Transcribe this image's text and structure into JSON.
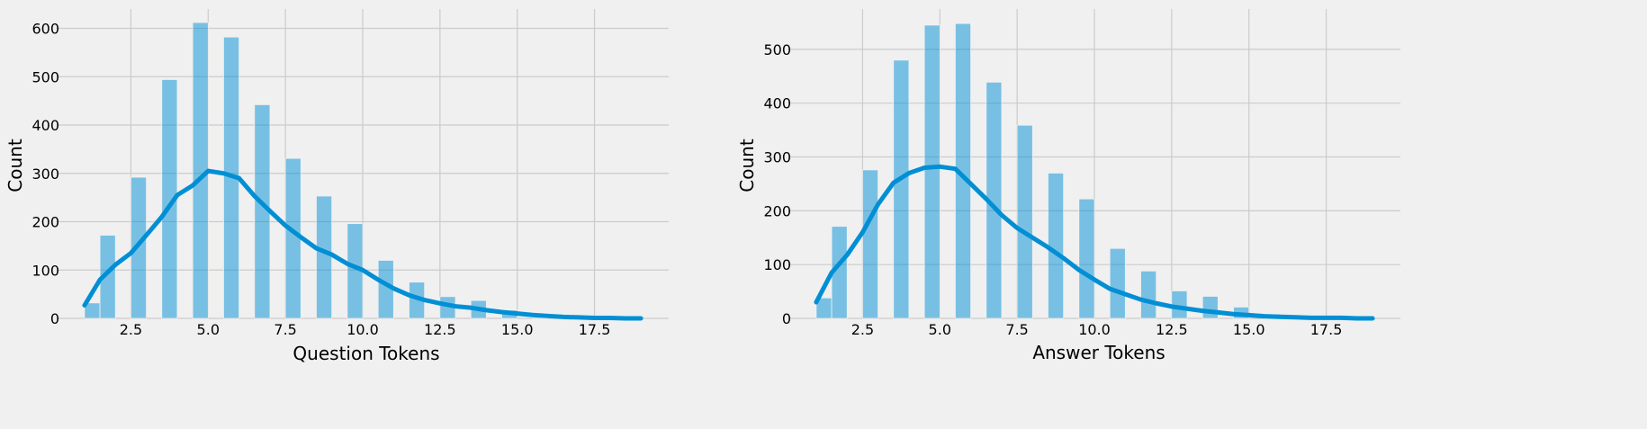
{
  "colors": {
    "background": "#f0f0f0",
    "grid": "#cbcbcb",
    "bar_fill": "#008fd5",
    "bar_opacity": 0.5,
    "kde_line": "#008fd5"
  },
  "chart_data": [
    {
      "type": "bar",
      "title": "",
      "xlabel": "Question Tokens",
      "ylabel": "Count",
      "xlim": [
        0.1,
        19.9
      ],
      "ylim": [
        0,
        640
      ],
      "xticks": [
        2.5,
        5.0,
        7.5,
        10.0,
        12.5,
        15.0,
        17.5
      ],
      "xtick_labels": [
        "2.5",
        "5.0",
        "7.5",
        "10.0",
        "12.5",
        "15.0",
        "17.5"
      ],
      "yticks": [
        0,
        100,
        200,
        300,
        400,
        500,
        600
      ],
      "ytick_labels": [
        "0",
        "100",
        "200",
        "300",
        "400",
        "500",
        "600"
      ],
      "grid": true,
      "histogram": {
        "bin_left": [
          1.0,
          1.5,
          2.5,
          3.5,
          4.5,
          5.5,
          6.5,
          7.5,
          8.5,
          9.5,
          10.5,
          11.5,
          12.5,
          13.5,
          14.5,
          15.5,
          16.5,
          17.5,
          18.5
        ],
        "bin_right": [
          1.5,
          2.0,
          3.0,
          4.0,
          5.0,
          6.0,
          7.0,
          8.0,
          9.0,
          10.0,
          11.0,
          12.0,
          13.0,
          14.0,
          15.0,
          16.0,
          17.0,
          18.0,
          19.0
        ],
        "counts": [
          32,
          172,
          292,
          494,
          612,
          582,
          442,
          331,
          253,
          196,
          120,
          75,
          45,
          37,
          17,
          2,
          1,
          1,
          1
        ]
      },
      "kde": {
        "x": [
          1.0,
          1.5,
          2.0,
          2.5,
          3.0,
          3.5,
          4.0,
          4.5,
          5.0,
          5.5,
          6.0,
          6.5,
          7.0,
          7.5,
          8.0,
          8.5,
          9.0,
          9.5,
          10.0,
          10.5,
          11.0,
          11.5,
          12.0,
          12.5,
          13.0,
          13.5,
          14.0,
          14.5,
          15.0,
          15.5,
          16.0,
          16.5,
          17.0,
          17.5,
          18.0,
          18.5,
          19.0
        ],
        "y": [
          27,
          80,
          111,
          135,
          172,
          210,
          255,
          275,
          305,
          300,
          290,
          253,
          222,
          192,
          168,
          145,
          132,
          113,
          100,
          80,
          62,
          48,
          38,
          31,
          25,
          22,
          17,
          13,
          10,
          7,
          5,
          3,
          2,
          1,
          1,
          0,
          0
        ]
      }
    },
    {
      "type": "bar",
      "title": "",
      "xlabel": "Answer Tokens",
      "ylabel": "Count",
      "xlim": [
        0.1,
        19.9
      ],
      "ylim": [
        0,
        575
      ],
      "xticks": [
        2.5,
        5.0,
        7.5,
        10.0,
        12.5,
        15.0,
        17.5
      ],
      "xtick_labels": [
        "2.5",
        "5.0",
        "7.5",
        "10.0",
        "12.5",
        "15.0",
        "17.5"
      ],
      "yticks": [
        0,
        100,
        200,
        300,
        400,
        500
      ],
      "ytick_labels": [
        "0",
        "100",
        "200",
        "300",
        "400",
        "500"
      ],
      "grid": true,
      "histogram": {
        "bin_left": [
          1.0,
          1.5,
          2.5,
          3.5,
          4.5,
          5.5,
          6.5,
          7.5,
          8.5,
          9.5,
          10.5,
          11.5,
          12.5,
          13.5,
          14.5,
          15.5,
          16.5,
          17.5,
          18.5
        ],
        "bin_right": [
          1.5,
          2.0,
          3.0,
          4.0,
          5.0,
          6.0,
          7.0,
          8.0,
          9.0,
          10.0,
          11.0,
          12.0,
          13.0,
          14.0,
          15.0,
          16.0,
          17.0,
          18.0,
          19.0
        ],
        "counts": [
          38,
          171,
          276,
          480,
          545,
          548,
          439,
          359,
          270,
          222,
          130,
          88,
          51,
          41,
          21,
          8,
          2,
          1,
          1
        ]
      },
      "kde": {
        "x": [
          1.0,
          1.5,
          2.0,
          2.5,
          3.0,
          3.5,
          4.0,
          4.5,
          5.0,
          5.5,
          6.0,
          6.5,
          7.0,
          7.5,
          8.0,
          8.5,
          9.0,
          9.5,
          10.0,
          10.5,
          11.0,
          11.5,
          12.0,
          12.5,
          13.0,
          13.5,
          14.0,
          14.5,
          15.0,
          15.5,
          16.0,
          16.5,
          17.0,
          17.5,
          18.0,
          18.5,
          19.0
        ],
        "y": [
          30,
          85,
          118,
          160,
          212,
          252,
          270,
          280,
          282,
          278,
          250,
          222,
          192,
          168,
          150,
          132,
          112,
          90,
          72,
          55,
          45,
          35,
          28,
          22,
          18,
          14,
          11,
          8,
          6,
          4,
          3,
          2,
          1,
          1,
          1,
          0,
          0
        ]
      }
    }
  ]
}
